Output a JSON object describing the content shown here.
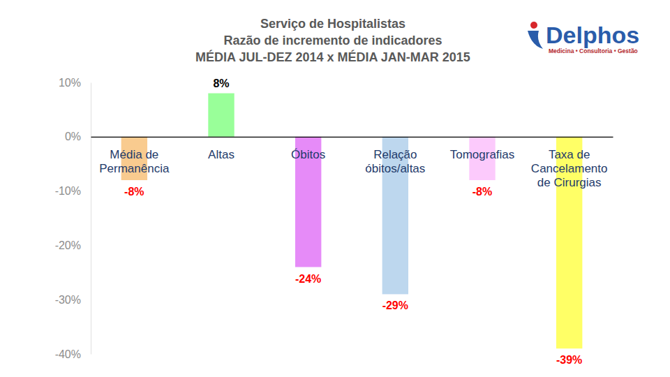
{
  "chart_data": {
    "type": "bar",
    "title": [
      "Serviço de Hospitalistas",
      "Razão de incremento de indicadores",
      "MÉDIA JUL-DEZ 2014 x MÉDIA JAN-MAR 2015"
    ],
    "categories": [
      "Média de Permanência",
      "Altas",
      "Óbitos",
      "Relação óbitos/altas",
      "Tomografias",
      "Taxa de Cancelamento de Cirurgias"
    ],
    "values": [
      -8,
      8,
      -24,
      -29,
      -8,
      -39
    ],
    "value_labels": [
      "-8%",
      "8%",
      "-24%",
      "-29%",
      "-8%",
      "-39%"
    ],
    "colors": [
      "#f9cb8f",
      "#99ff99",
      "#e68bf8",
      "#bdd7ee",
      "#fccafc",
      "#ffff66"
    ],
    "ylim": [
      -40,
      10
    ],
    "yticks": [
      {
        "value": 10,
        "label": "10%"
      },
      {
        "value": 0,
        "label": "0%"
      },
      {
        "value": -10,
        "label": "-10%"
      },
      {
        "value": -20,
        "label": "-20%"
      },
      {
        "value": -30,
        "label": "-30%"
      },
      {
        "value": -40,
        "label": "-40%"
      }
    ],
    "grid": false,
    "data_labels": true
  },
  "logo": {
    "name": "Delphos",
    "tagline": "Medicina • Consultoria • Gestão"
  }
}
